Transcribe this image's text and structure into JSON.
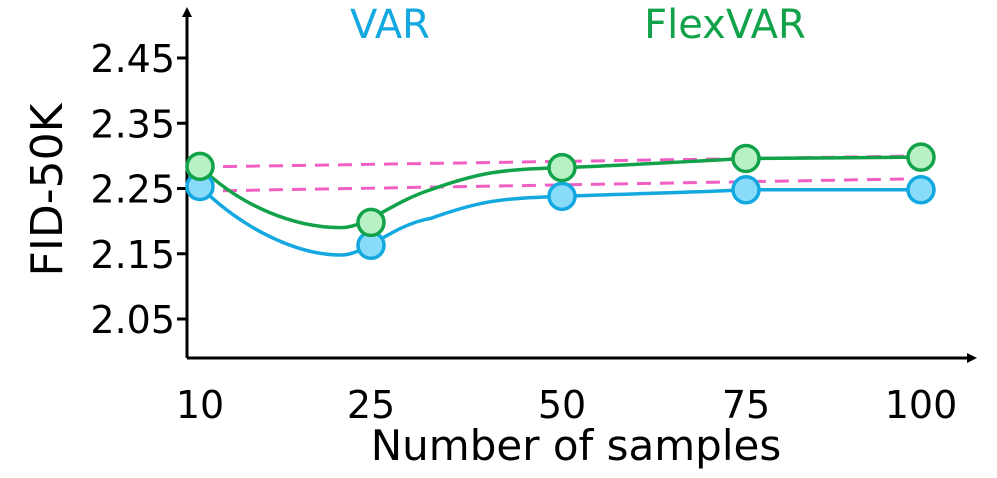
{
  "chart_data": {
    "type": "line",
    "title": "",
    "xlabel": "Number of samples",
    "ylabel": "FID-50K",
    "categories": [
      "10",
      "25",
      "50",
      "75",
      "100"
    ],
    "yticks": [
      "2.05",
      "2.15",
      "2.25",
      "2.35",
      "2.45"
    ],
    "ylim": [
      1.98,
      2.52
    ],
    "series": [
      {
        "name": "VAR",
        "color": "#14a8e0",
        "fill": "#88dcfa",
        "values": [
          2.253,
          2.163,
          2.238,
          2.248,
          2.248
        ]
      },
      {
        "name": "FlexVAR",
        "color": "#12a34a",
        "fill": "#b8f2c4",
        "values": [
          2.284,
          2.198,
          2.282,
          2.296,
          2.298
        ]
      }
    ],
    "reference_lines": [
      {
        "color": "#f060c4",
        "style": "dashed",
        "from": 2.283,
        "to": 2.3
      },
      {
        "color": "#f060c4",
        "style": "dashed",
        "from": 2.246,
        "to": 2.265
      }
    ],
    "legend": "top, inline above plot"
  }
}
